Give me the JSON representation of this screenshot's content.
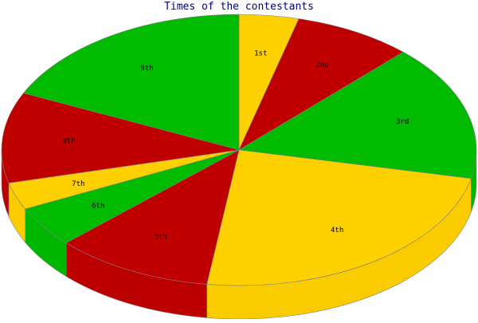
{
  "chart_data": {
    "type": "pie",
    "title": "Times of the contestants",
    "style": "3d",
    "start_angle_deg": 270,
    "direction": "clockwise",
    "slices": [
      {
        "label": "1st",
        "value": 3.75,
        "color": "#FFD000"
      },
      {
        "label": "2nd",
        "value": 7.5,
        "color": "#C00000"
      },
      {
        "label": "3rd",
        "value": 15,
        "color": "#00BB00"
      },
      {
        "label": "4th",
        "value": 22,
        "color": "#FFD000"
      },
      {
        "label": "5th",
        "value": 10,
        "color": "#C00000"
      },
      {
        "label": "6th",
        "value": 4.5,
        "color": "#00BB00"
      },
      {
        "label": "7th",
        "value": 3,
        "color": "#FFD000"
      },
      {
        "label": "8th",
        "value": 10,
        "color": "#C00000"
      },
      {
        "label": "9th",
        "value": 16.75,
        "color": "#00BB00"
      }
    ]
  }
}
